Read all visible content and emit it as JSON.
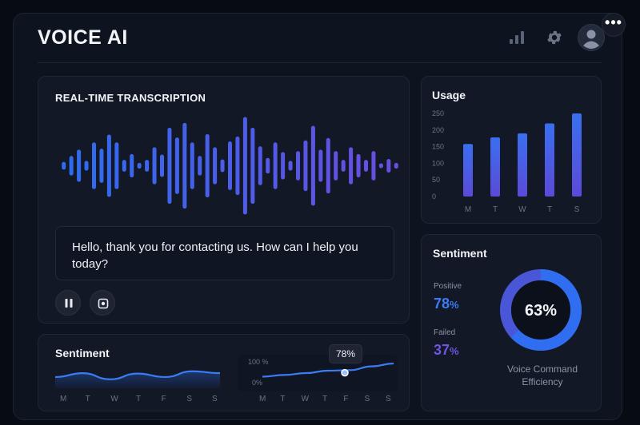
{
  "header": {
    "title": "VOICE AI",
    "more_label": "•••"
  },
  "transcription": {
    "title": "REAL-TIME TRANSCRIPTION",
    "message": "Hello, thank you for contacting us. How can I help you today?",
    "waveform_levels": [
      0.08,
      0.2,
      0.33,
      0.1,
      0.48,
      0.35,
      0.64,
      0.48,
      0.12,
      0.24,
      0.06,
      0.12,
      0.38,
      0.23,
      0.78,
      0.58,
      0.88,
      0.48,
      0.2,
      0.65,
      0.38,
      0.13,
      0.5,
      0.6,
      1.0,
      0.78,
      0.4,
      0.16,
      0.48,
      0.28,
      0.1,
      0.3,
      0.52,
      0.82,
      0.33,
      0.57,
      0.3,
      0.12,
      0.38,
      0.24,
      0.12,
      0.3,
      0.05,
      0.14,
      0.06
    ],
    "colors": {
      "start": "#2e6cf0",
      "end": "#6a4ee0"
    }
  },
  "usage": {
    "title": "Usage",
    "chart_data": {
      "type": "bar",
      "categories": [
        "M",
        "T",
        "W",
        "T",
        "S"
      ],
      "values": [
        158,
        178,
        190,
        220,
        250
      ],
      "ylim": [
        0,
        250
      ],
      "yticks": [
        "250",
        "200",
        "150",
        "100",
        "50",
        "0"
      ]
    }
  },
  "sentiment_donut": {
    "title": "Sentiment",
    "positive_label": "Positive",
    "positive_value": "78",
    "failed_label": "Failed",
    "failed_value": "37",
    "percent_sign": "%",
    "center_value": "63%",
    "ring_fraction": 0.63,
    "caption_line1": "Voice Command",
    "caption_line2": "Efficiency",
    "colors": {
      "positive": "#3b7cf5",
      "failed": "#6d55e0",
      "ring": "#2f6ef0",
      "ring_rest": "#4a56d8"
    }
  },
  "sentiment_trend": {
    "title": "Sentiment",
    "days_left": [
      "M",
      "T",
      "W",
      "T",
      "F",
      "S",
      "S"
    ],
    "days_right": [
      "M",
      "T",
      "W",
      "T",
      "F",
      "S",
      "S"
    ],
    "left_values": [
      0.42,
      0.62,
      0.3,
      0.6,
      0.42,
      0.72,
      0.62
    ],
    "right_values": [
      0.35,
      0.42,
      0.5,
      0.6,
      0.62,
      0.78,
      0.9
    ],
    "y_top_label": "100 %",
    "y_bottom_label": "0%",
    "tooltip_label": "78%",
    "marker_value": 0.78
  },
  "icons": {
    "stats": "bar-chart-icon",
    "settings": "gear-icon",
    "profile": "avatar-icon",
    "pause": "pause-icon",
    "record": "record-icon"
  }
}
